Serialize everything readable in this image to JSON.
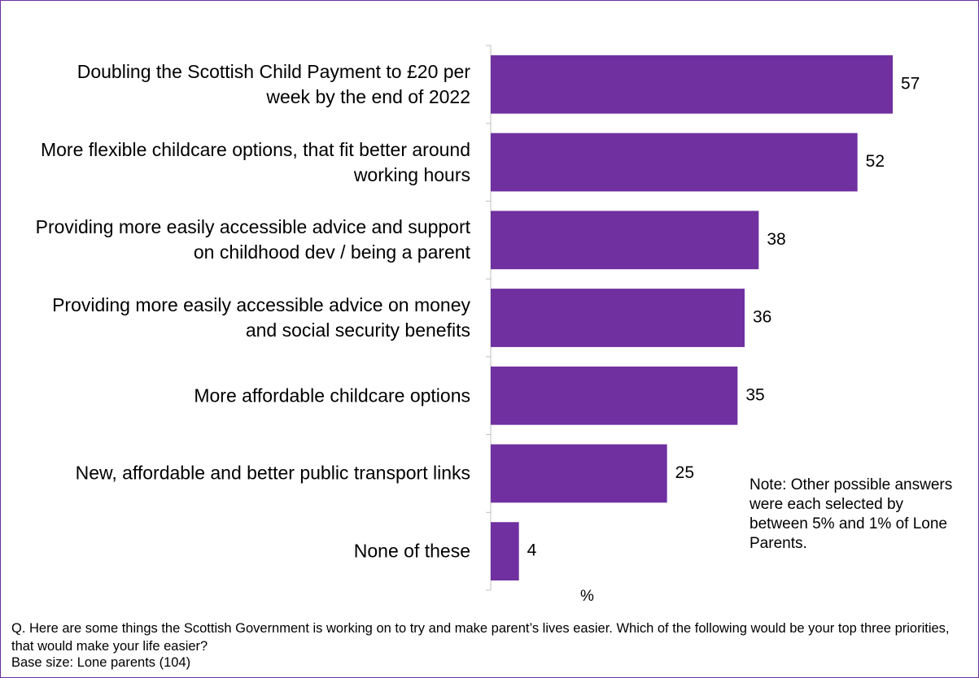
{
  "chart_data": {
    "type": "bar",
    "orientation": "horizontal",
    "categories": [
      "Doubling the Scottish Child Payment to £20 per week by the end of 2022",
      "More flexible childcare options, that fit better around working hours",
      "Providing more easily accessible advice and support on childhood dev / being a parent",
      "Providing more easily accessible advice on money and social security benefits",
      "More affordable childcare options",
      "New, affordable and better public transport links",
      "None of these"
    ],
    "values": [
      57,
      52,
      38,
      36,
      35,
      25,
      4
    ],
    "color": "#7030a0",
    "xlim": [
      0,
      60
    ],
    "xlabel": "%",
    "note": "Note: Other possible answers were each selected by between 5% and 1% of Lone Parents.",
    "question": "Q. Here are some things the Scottish Government is working on to try and make parent’s lives easier. Which of the following would be your top three priorities, that would make your life easier?",
    "base": "Base size: Lone parents (104)"
  }
}
